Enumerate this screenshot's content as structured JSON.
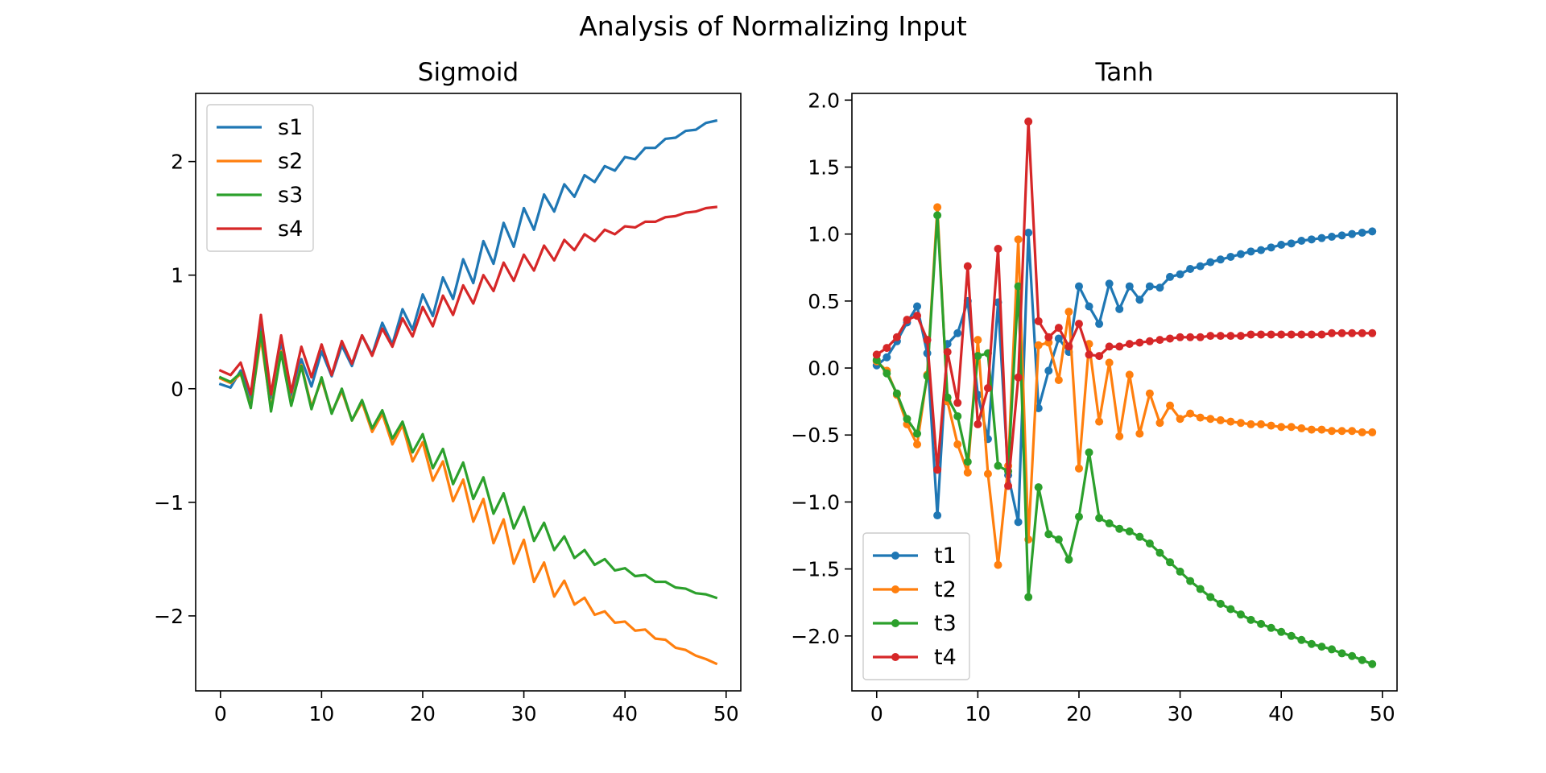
{
  "title": "Analysis of Normalizing Input",
  "colors": {
    "c1": "#1f77b4",
    "c2": "#ff7f0e",
    "c3": "#2ca02c",
    "c4": "#d62728"
  },
  "chart_data": [
    {
      "type": "line",
      "title": "Sigmoid",
      "xlabel": "",
      "ylabel": "",
      "xlim": [
        -2.45,
        51.45
      ],
      "ylim": [
        -2.66,
        2.6
      ],
      "xticks": [
        0,
        10,
        20,
        30,
        40,
        50
      ],
      "yticks": [
        -2,
        -1,
        0,
        1,
        2
      ],
      "markers": false,
      "legend": "upper left",
      "grid": false,
      "x": [
        0,
        1,
        2,
        3,
        4,
        5,
        6,
        7,
        8,
        9,
        10,
        11,
        12,
        13,
        14,
        15,
        16,
        17,
        18,
        19,
        20,
        21,
        22,
        23,
        24,
        25,
        26,
        27,
        28,
        29,
        30,
        31,
        32,
        33,
        34,
        35,
        36,
        37,
        38,
        39,
        40,
        41,
        42,
        43,
        44,
        45,
        46,
        47,
        48,
        49
      ],
      "series": [
        {
          "name": "s1",
          "color": "#1f77b4",
          "values": [
            0.04,
            0.01,
            0.16,
            -0.1,
            0.58,
            -0.08,
            0.42,
            -0.07,
            0.26,
            0.02,
            0.33,
            0.11,
            0.38,
            0.2,
            0.47,
            0.3,
            0.58,
            0.39,
            0.7,
            0.52,
            0.83,
            0.64,
            0.98,
            0.79,
            1.14,
            0.93,
            1.3,
            1.1,
            1.46,
            1.25,
            1.59,
            1.4,
            1.71,
            1.56,
            1.8,
            1.69,
            1.88,
            1.82,
            1.96,
            1.92,
            2.04,
            2.02,
            2.12,
            2.12,
            2.2,
            2.21,
            2.27,
            2.28,
            2.34,
            2.36
          ]
        },
        {
          "name": "s2",
          "color": "#ff7f0e",
          "values": [
            0.09,
            0.05,
            0.13,
            -0.15,
            0.45,
            -0.18,
            0.33,
            -0.13,
            0.21,
            -0.16,
            0.08,
            -0.21,
            -0.02,
            -0.28,
            -0.12,
            -0.38,
            -0.22,
            -0.49,
            -0.32,
            -0.64,
            -0.47,
            -0.81,
            -0.64,
            -0.99,
            -0.8,
            -1.17,
            -0.97,
            -1.36,
            -1.15,
            -1.54,
            -1.33,
            -1.7,
            -1.53,
            -1.83,
            -1.69,
            -1.9,
            -1.84,
            -1.99,
            -1.96,
            -2.06,
            -2.05,
            -2.13,
            -2.12,
            -2.2,
            -2.21,
            -2.28,
            -2.3,
            -2.35,
            -2.38,
            -2.42
          ]
        },
        {
          "name": "s3",
          "color": "#2ca02c",
          "values": [
            0.1,
            0.06,
            0.14,
            -0.17,
            0.5,
            -0.2,
            0.32,
            -0.15,
            0.2,
            -0.18,
            0.1,
            -0.22,
            0.0,
            -0.28,
            -0.1,
            -0.35,
            -0.19,
            -0.44,
            -0.29,
            -0.56,
            -0.4,
            -0.7,
            -0.53,
            -0.84,
            -0.65,
            -0.97,
            -0.78,
            -1.1,
            -0.92,
            -1.23,
            -1.04,
            -1.34,
            -1.18,
            -1.42,
            -1.3,
            -1.49,
            -1.42,
            -1.55,
            -1.5,
            -1.6,
            -1.58,
            -1.65,
            -1.64,
            -1.7,
            -1.7,
            -1.75,
            -1.76,
            -1.8,
            -1.81,
            -1.84
          ]
        },
        {
          "name": "s4",
          "color": "#d62728",
          "values": [
            0.16,
            0.12,
            0.23,
            -0.05,
            0.65,
            -0.05,
            0.47,
            -0.03,
            0.37,
            0.1,
            0.39,
            0.12,
            0.42,
            0.22,
            0.47,
            0.29,
            0.53,
            0.37,
            0.62,
            0.46,
            0.72,
            0.55,
            0.82,
            0.65,
            0.91,
            0.75,
            1.0,
            0.86,
            1.11,
            0.95,
            1.18,
            1.04,
            1.26,
            1.13,
            1.31,
            1.22,
            1.36,
            1.3,
            1.4,
            1.36,
            1.43,
            1.42,
            1.47,
            1.47,
            1.51,
            1.52,
            1.55,
            1.56,
            1.59,
            1.6
          ]
        }
      ]
    },
    {
      "type": "line",
      "title": "Tanh",
      "xlabel": "",
      "ylabel": "",
      "xlim": [
        -2.45,
        51.45
      ],
      "ylim": [
        -2.41,
        2.05
      ],
      "xticks": [
        0,
        10,
        20,
        30,
        40,
        50
      ],
      "yticks": [
        -2.0,
        -1.5,
        -1.0,
        -0.5,
        0.0,
        0.5,
        1.0,
        1.5,
        2.0
      ],
      "ytick_labels": [
        "−2.0",
        "−1.5",
        "−1.0",
        "−0.5",
        "0.0",
        "0.5",
        "1.0",
        "1.5",
        "2.0"
      ],
      "markers": true,
      "legend": "lower left",
      "grid": false,
      "x": [
        0,
        1,
        2,
        3,
        4,
        5,
        6,
        7,
        8,
        9,
        10,
        11,
        12,
        13,
        14,
        15,
        16,
        17,
        18,
        19,
        20,
        21,
        22,
        23,
        24,
        25,
        26,
        27,
        28,
        29,
        30,
        31,
        32,
        33,
        34,
        35,
        36,
        37,
        38,
        39,
        40,
        41,
        42,
        43,
        44,
        45,
        46,
        47,
        48,
        49
      ],
      "series": [
        {
          "name": "t1",
          "color": "#1f77b4",
          "values": [
            0.02,
            0.08,
            0.2,
            0.34,
            0.46,
            0.11,
            -1.1,
            0.18,
            0.26,
            0.5,
            -0.2,
            -0.53,
            0.49,
            -0.8,
            -1.15,
            1.01,
            -0.3,
            -0.02,
            0.22,
            0.12,
            0.61,
            0.46,
            0.33,
            0.63,
            0.44,
            0.61,
            0.51,
            0.61,
            0.6,
            0.68,
            0.7,
            0.74,
            0.76,
            0.79,
            0.81,
            0.83,
            0.85,
            0.87,
            0.88,
            0.9,
            0.92,
            0.93,
            0.95,
            0.96,
            0.97,
            0.98,
            0.99,
            1.0,
            1.01,
            1.02
          ]
        },
        {
          "name": "t2",
          "color": "#ff7f0e",
          "values": [
            0.05,
            -0.02,
            -0.2,
            -0.42,
            -0.57,
            -0.05,
            1.2,
            -0.25,
            -0.57,
            -0.78,
            0.21,
            -0.79,
            -1.47,
            -0.73,
            0.96,
            -1.28,
            0.17,
            0.19,
            -0.09,
            0.42,
            -0.75,
            0.18,
            -0.4,
            0.04,
            -0.51,
            -0.05,
            -0.49,
            -0.19,
            -0.41,
            -0.28,
            -0.38,
            -0.34,
            -0.37,
            -0.38,
            -0.39,
            -0.4,
            -0.41,
            -0.42,
            -0.42,
            -0.43,
            -0.44,
            -0.44,
            -0.45,
            -0.46,
            -0.46,
            -0.47,
            -0.47,
            -0.47,
            -0.48,
            -0.48
          ]
        },
        {
          "name": "t3",
          "color": "#2ca02c",
          "values": [
            0.06,
            -0.04,
            -0.19,
            -0.38,
            -0.49,
            -0.06,
            1.14,
            -0.22,
            -0.36,
            -0.7,
            0.09,
            0.11,
            -0.73,
            -0.77,
            0.61,
            -1.71,
            -0.89,
            -1.24,
            -1.28,
            -1.43,
            -1.11,
            -0.63,
            -1.12,
            -1.16,
            -1.2,
            -1.22,
            -1.26,
            -1.31,
            -1.38,
            -1.45,
            -1.52,
            -1.59,
            -1.65,
            -1.71,
            -1.76,
            -1.8,
            -1.84,
            -1.88,
            -1.91,
            -1.94,
            -1.97,
            -2.0,
            -2.03,
            -2.06,
            -2.08,
            -2.1,
            -2.13,
            -2.15,
            -2.18,
            -2.21
          ]
        },
        {
          "name": "t4",
          "color": "#d62728",
          "values": [
            0.1,
            0.15,
            0.23,
            0.36,
            0.39,
            0.21,
            -0.76,
            0.12,
            -0.26,
            0.76,
            -0.42,
            -0.15,
            0.89,
            -0.88,
            -0.07,
            1.84,
            0.35,
            0.23,
            0.3,
            0.16,
            0.33,
            0.1,
            0.09,
            0.16,
            0.16,
            0.18,
            0.19,
            0.2,
            0.21,
            0.22,
            0.23,
            0.23,
            0.23,
            0.24,
            0.24,
            0.24,
            0.24,
            0.25,
            0.25,
            0.25,
            0.25,
            0.25,
            0.25,
            0.25,
            0.25,
            0.26,
            0.26,
            0.26,
            0.26,
            0.26
          ]
        }
      ]
    }
  ]
}
